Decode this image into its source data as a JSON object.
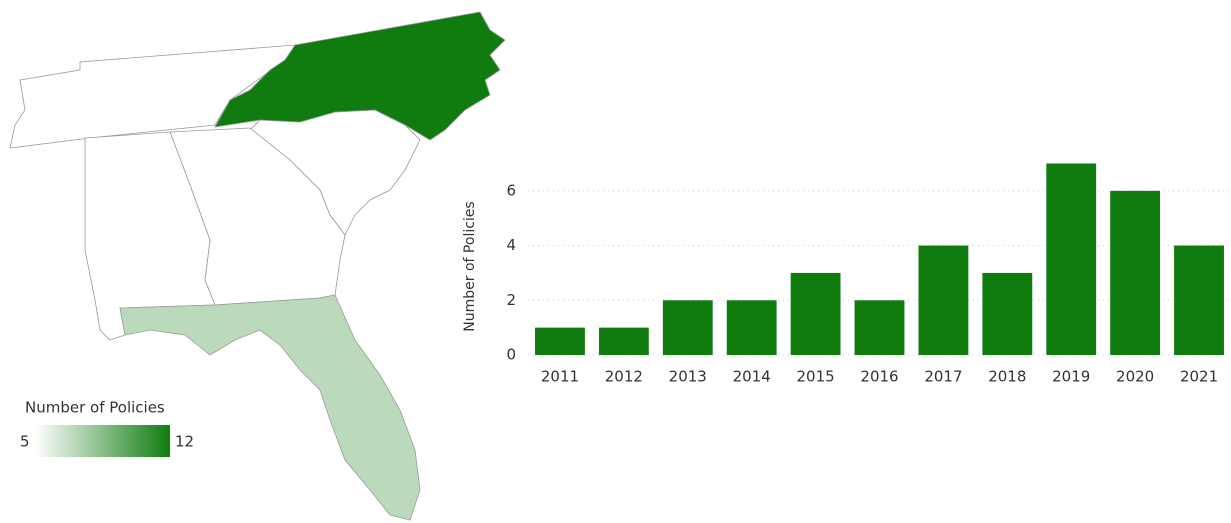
{
  "chart_data": [
    {
      "type": "choropleth",
      "legend_title": "Number of Policies",
      "scale_min": 5,
      "scale_max": 12,
      "scale_min_label": "5",
      "scale_max_label": "12",
      "color_min": "#ffffff",
      "color_max": "#107c10",
      "values": [
        12,
        7
      ]
    },
    {
      "type": "bar",
      "y_label": "Number of Policies",
      "categories": [
        "2011",
        "2012",
        "2013",
        "2014",
        "2015",
        "2016",
        "2017",
        "2018",
        "2019",
        "2020",
        "2021"
      ],
      "values": [
        1,
        1,
        2,
        2,
        3,
        2,
        4,
        3,
        7,
        6,
        4
      ],
      "color": "#107c10",
      "ylim": [
        0,
        7.2
      ],
      "yticks": [
        0,
        2,
        4,
        6
      ],
      "grid": true
    }
  ]
}
